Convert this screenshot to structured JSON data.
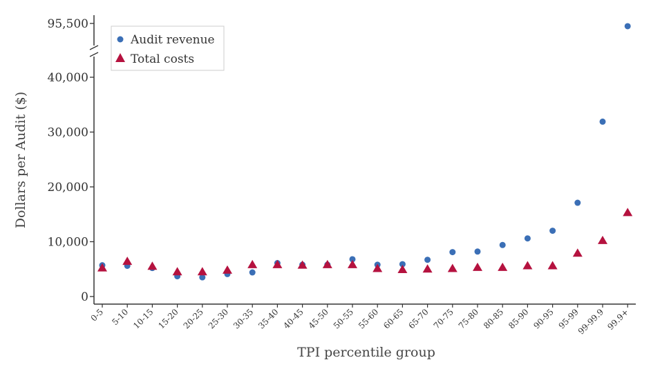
{
  "chart_data": {
    "type": "scatter",
    "title": "",
    "xlabel": "TPI percentile group",
    "ylabel": "Dollars per Audit ($)",
    "categories": [
      "0-5",
      "5-10",
      "10-15",
      "15-20",
      "20-25",
      "25-30",
      "30-35",
      "35-40",
      "40-45",
      "45-50",
      "50-55",
      "55-60",
      "60-65",
      "65-70",
      "70-75",
      "75-80",
      "80-85",
      "85-90",
      "90-95",
      "95-99",
      "99-99.9",
      "99.9+"
    ],
    "y_ticks": [
      0,
      10000,
      20000,
      30000,
      40000,
      95500
    ],
    "y_tick_labels": [
      "0",
      "10,000",
      "20,000",
      "30,000",
      "40,000",
      "95,500"
    ],
    "y_axis_break": [
      42000,
      94000
    ],
    "ylim": [
      0,
      96000
    ],
    "legend_position": "top-left",
    "grid": false,
    "series": [
      {
        "name": "Audit revenue",
        "marker": "circle",
        "color": "#3b6fb6",
        "values": [
          5700,
          5600,
          5200,
          3700,
          3500,
          4100,
          4400,
          6100,
          5800,
          5800,
          6800,
          5800,
          5900,
          6700,
          8100,
          8200,
          9400,
          10600,
          12000,
          17100,
          31900,
          95000
        ]
      },
      {
        "name": "Total costs",
        "marker": "triangle",
        "color": "#b5123f",
        "values": [
          5200,
          6400,
          5500,
          4500,
          4500,
          4800,
          5800,
          5800,
          5700,
          5800,
          5800,
          5100,
          4900,
          5000,
          5100,
          5300,
          5300,
          5600,
          5600,
          7900,
          10200,
          15300
        ]
      }
    ]
  }
}
